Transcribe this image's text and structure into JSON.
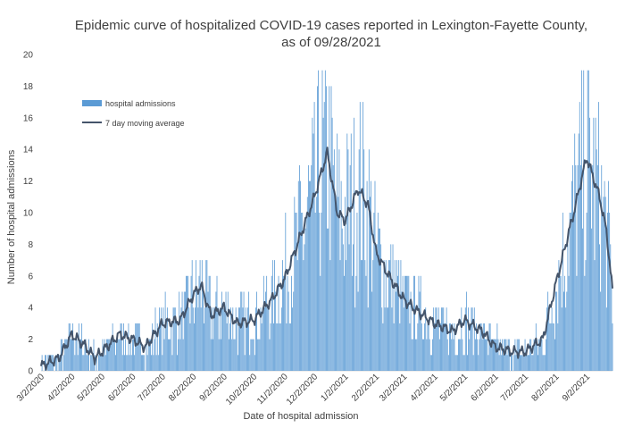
{
  "chart_data": {
    "type": "bar",
    "title_line1": "Epidemic curve of hospitalized COVID-19 cases reported in Lexington-Fayette County,",
    "title_line2": "as of 09/28/2021",
    "xlabel": "Date of hospital admission",
    "ylabel": "Number of hospital admissions",
    "ylim": [
      0,
      20
    ],
    "yticks": [
      0,
      2,
      4,
      6,
      8,
      10,
      12,
      14,
      16,
      18,
      20
    ],
    "x_start": "3/2/2020",
    "x_end": "9/28/2021",
    "xtick_labels": [
      "3/2/2020",
      "4/2/2020",
      "5/2/2020",
      "6/2/2020",
      "7/2/2020",
      "8/2/2020",
      "9/2/2020",
      "10/2/2020",
      "11/2/2020",
      "12/2/2020",
      "1/2/2021",
      "2/2/2021",
      "3/2/2021",
      "4/2/2021",
      "5/2/2021",
      "6/2/2021",
      "7/2/2021",
      "8/2/2021",
      "9/2/2021"
    ],
    "legend_position": "upper-left",
    "series": [
      {
        "name": "hospital admissions",
        "kind": "bar",
        "color": "#5b9bd5"
      },
      {
        "name": "7 day moving average",
        "kind": "line",
        "color": "#44546a"
      }
    ],
    "moving_average_keypoints": [
      [
        "3/2/2020",
        0.3
      ],
      [
        "3/20/2020",
        0.8
      ],
      [
        "4/2/2020",
        2.3
      ],
      [
        "4/15/2020",
        1.6
      ],
      [
        "4/25/2020",
        0.8
      ],
      [
        "5/2/2020",
        1.2
      ],
      [
        "5/20/2020",
        2.3
      ],
      [
        "6/2/2020",
        2.0
      ],
      [
        "6/15/2020",
        1.5
      ],
      [
        "7/2/2020",
        3.0
      ],
      [
        "7/20/2020",
        3.2
      ],
      [
        "8/2/2020",
        4.8
      ],
      [
        "8/10/2020",
        5.4
      ],
      [
        "8/20/2020",
        3.5
      ],
      [
        "9/2/2020",
        4.0
      ],
      [
        "9/15/2020",
        3.0
      ],
      [
        "10/2/2020",
        3.2
      ],
      [
        "10/20/2020",
        4.5
      ],
      [
        "11/2/2020",
        5.8
      ],
      [
        "11/15/2020",
        8.0
      ],
      [
        "12/2/2020",
        11.0
      ],
      [
        "12/15/2020",
        13.8
      ],
      [
        "12/25/2020",
        10.0
      ],
      [
        "1/2/2021",
        9.5
      ],
      [
        "1/15/2021",
        11.5
      ],
      [
        "1/25/2021",
        10.5
      ],
      [
        "2/2/2021",
        7.5
      ],
      [
        "2/15/2021",
        6.0
      ],
      [
        "3/2/2021",
        4.5
      ],
      [
        "3/15/2021",
        3.8
      ],
      [
        "4/2/2021",
        3.0
      ],
      [
        "4/20/2021",
        2.5
      ],
      [
        "5/2/2021",
        3.2
      ],
      [
        "5/20/2021",
        2.5
      ],
      [
        "6/2/2021",
        1.5
      ],
      [
        "6/20/2021",
        1.2
      ],
      [
        "7/2/2021",
        1.2
      ],
      [
        "7/20/2021",
        2.0
      ],
      [
        "8/2/2021",
        5.5
      ],
      [
        "8/20/2021",
        10.0
      ],
      [
        "9/2/2021",
        13.5
      ],
      [
        "9/15/2021",
        11.0
      ],
      [
        "9/22/2021",
        8.8
      ],
      [
        "9/28/2021",
        5.0
      ]
    ]
  }
}
